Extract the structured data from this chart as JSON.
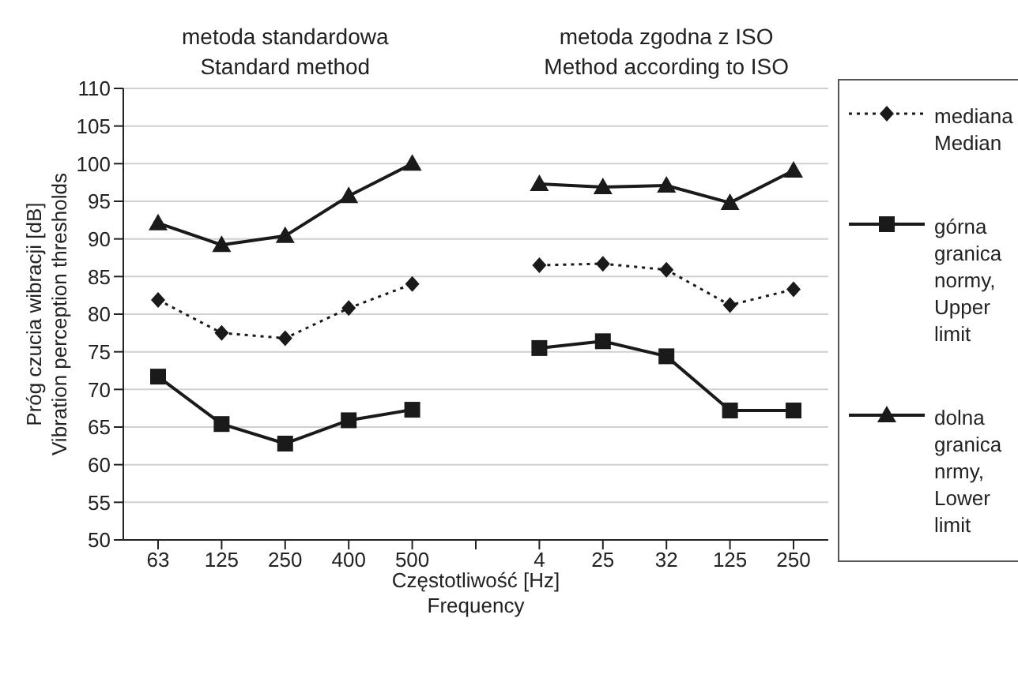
{
  "chart_data": {
    "type": "line",
    "xlabel": "Częstotliwość [Hz]\nFrequency",
    "ylabel": "Próg czucia wibracji [dB]\nVibration perception thresholds",
    "categories": [
      "63",
      "125",
      "250",
      "400",
      "500",
      null,
      "4",
      "25",
      "32",
      "125",
      "250"
    ],
    "ylim": [
      50,
      110
    ],
    "yticks": [
      50,
      55,
      60,
      65,
      70,
      75,
      80,
      85,
      90,
      95,
      100,
      105,
      110
    ],
    "grid": "y",
    "legend": "right",
    "annotations": [
      "metoda standardowa\nStandard method",
      "metoda zgodna z ISO\nMethod according to ISO"
    ],
    "series": [
      {
        "name": "mediana\nMedian",
        "color": "#1a1a1a",
        "marker": "diamond",
        "line_style": "dotted",
        "values": [
          81.9,
          77.5,
          76.8,
          80.8,
          84,
          null,
          86.5,
          86.7,
          85.9,
          81.2,
          83.3
        ]
      },
      {
        "name": "górna\ngranica\nnormy,\nUpper\nlimit",
        "color": "#1a1a1a",
        "marker": "square",
        "line_style": "solid",
        "values": [
          71.7,
          65.4,
          62.8,
          65.9,
          67.3,
          null,
          75.5,
          76.4,
          74.4,
          67.2,
          67.2
        ]
      },
      {
        "name": "dolna\ngranica\nnrmy,\nLower\nlimit",
        "color": "#1a1a1a",
        "marker": "triangle",
        "line_style": "solid",
        "values": [
          92.1,
          89.2,
          90.4,
          95.7,
          100,
          null,
          97.3,
          96.9,
          97.1,
          94.8,
          99.1
        ]
      }
    ]
  }
}
